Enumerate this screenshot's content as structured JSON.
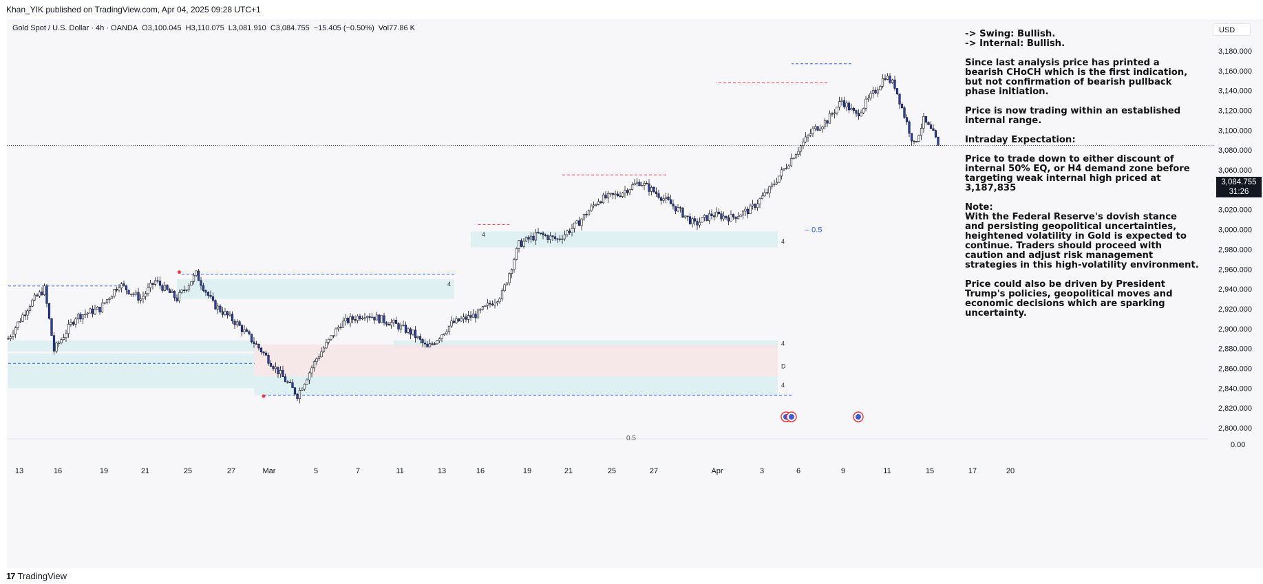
{
  "header": {
    "publisher_text": "Khan_YIK published on TradingView.com, Apr 04, 2025 09:28 UTC+1"
  },
  "legend": {
    "symbol": "Gold Spot / U.S. Dollar · 4h · OANDA",
    "open": "O3,100.045",
    "high": "H3,110.075",
    "low": "L3,081.910",
    "close": "C3,084.755",
    "change": "−15.405 (−0.50%)",
    "volume": "Vol77.86 K"
  },
  "currency": "USD",
  "price_tag": {
    "price": "3,084.755",
    "countdown": "31:26"
  },
  "annotation": {
    "swing": "-> Swing:  Bullish.",
    "internal": "-> Internal:  Bullish.",
    "para1": "Since last analysis price has printed a bearish CHoCH which is the first indication, but not confirmation of bearish pullback phase initiation.",
    "para2": "Price is now trading within an established internal range.",
    "para3": "Intraday Expectation:",
    "para4": "Price to trade down to either discount of internal 50% EQ, or H4 demand zone before targeting weak internal high priced at 3,187,835",
    "note_title": "Note:",
    "note_body": "With the Federal Reserve's dovish stance and persisting geopolitical uncertainties, heightened volatility in Gold is expected to continue. Traders should proceed with caution and adjust risk management strategies in this high-volatility environment.",
    "para5": "Price could also be driven by President Trump's policies, geopolitical moves and economic decisions which are sparking uncertainty."
  },
  "footer": {
    "brand": "TradingView",
    "mark": "17"
  },
  "colors": {
    "bull_candle": "#ffffff",
    "bear_candle": "#2a3fa8",
    "wick": "#131722",
    "demand_zone": "#d6eef0",
    "supply_zone": "#f6e1e4",
    "blue_line": "#2962ff",
    "red_line": "#f23645"
  },
  "chart_data": {
    "type": "candlestick",
    "title": "Gold Spot / U.S. Dollar · 4h · OANDA",
    "y_axis_ticks": [
      "3,180.000",
      "3,160.000",
      "3,140.000",
      "3,120.000",
      "3,100.000",
      "3,080.000",
      "3,060.000",
      "3,040.000",
      "3,020.000",
      "3,000.000",
      "2,980.000",
      "2,960.000",
      "2,940.000",
      "2,920.000",
      "2,900.000",
      "2,880.000",
      "2,860.000",
      "2,840.000",
      "2,820.000",
      "2,800.000"
    ],
    "ylim": [
      2800,
      3190
    ],
    "volume_axis_tick": "0.00",
    "x_axis_ticks": [
      "13",
      "16",
      "19",
      "21",
      "25",
      "27",
      "Mar",
      "5",
      "7",
      "11",
      "13",
      "16",
      "19",
      "21",
      "25",
      "27",
      "Apr",
      "3",
      "6",
      "9",
      "11",
      "15",
      "17",
      "20"
    ],
    "current_price": 3084.755,
    "key_path": [
      [
        0,
        2890
      ],
      [
        9,
        2925
      ],
      [
        15,
        2940
      ],
      [
        19,
        2878
      ],
      [
        28,
        2912
      ],
      [
        38,
        2920
      ],
      [
        46,
        2945
      ],
      [
        55,
        2930
      ],
      [
        61,
        2948
      ],
      [
        70,
        2930
      ],
      [
        78,
        2955
      ],
      [
        85,
        2925
      ],
      [
        95,
        2905
      ],
      [
        105,
        2878
      ],
      [
        115,
        2848
      ],
      [
        120,
        2833
      ],
      [
        128,
        2870
      ],
      [
        138,
        2905
      ],
      [
        148,
        2915
      ],
      [
        160,
        2905
      ],
      [
        168,
        2895
      ],
      [
        174,
        2880
      ],
      [
        184,
        2905
      ],
      [
        195,
        2915
      ],
      [
        205,
        2935
      ],
      [
        212,
        2985
      ],
      [
        220,
        2995
      ],
      [
        228,
        2990
      ],
      [
        236,
        3005
      ],
      [
        245,
        3030
      ],
      [
        253,
        3035
      ],
      [
        262,
        3048
      ],
      [
        270,
        3035
      ],
      [
        278,
        3020
      ],
      [
        285,
        3005
      ],
      [
        292,
        3015
      ],
      [
        300,
        3012
      ],
      [
        308,
        3020
      ],
      [
        316,
        3040
      ],
      [
        326,
        3075
      ],
      [
        334,
        3100
      ],
      [
        340,
        3110
      ],
      [
        346,
        3130
      ],
      [
        352,
        3115
      ],
      [
        360,
        3140
      ],
      [
        364,
        3155
      ],
      [
        368,
        3145
      ],
      [
        372,
        3115
      ],
      [
        376,
        3085
      ],
      [
        380,
        3110
      ],
      [
        384,
        3096
      ],
      [
        386,
        3085
      ]
    ],
    "candle_count": 387,
    "zones": [
      {
        "type": "demand",
        "timeframe": "4",
        "low": 2982,
        "high": 2998
      },
      {
        "type": "demand",
        "timeframe": "4",
        "low": 2880,
        "high": 2888
      },
      {
        "type": "supply",
        "timeframe": "D",
        "low": 2852,
        "high": 2884
      },
      {
        "type": "demand",
        "timeframe": "4",
        "low": 2833,
        "high": 2852
      },
      {
        "type": "demand",
        "low": 2930,
        "high": 2950
      },
      {
        "type": "demand",
        "low": 2877,
        "high": 2888
      },
      {
        "type": "demand",
        "low": 2840,
        "high": 2875
      }
    ],
    "levels": [
      {
        "price": 3167,
        "style": "blue-dashed",
        "label": ""
      },
      {
        "price": 3148,
        "style": "red-dashed",
        "label": ""
      },
      {
        "price": 3055,
        "style": "red-dashed",
        "label": ""
      },
      {
        "price": 3005,
        "style": "red-dashed",
        "label": ""
      },
      {
        "price": 2955,
        "style": "blue-dashed",
        "label": ""
      },
      {
        "price": 2943,
        "style": "blue-dashed",
        "label": ""
      },
      {
        "price": 2865,
        "style": "blue-dashed",
        "label": ""
      },
      {
        "price": 2833,
        "style": "blue-dashed",
        "label": ""
      }
    ],
    "eq_label": "0.5",
    "eq_price": 3000,
    "zone_labels": [
      "4",
      "4",
      "D",
      "4",
      "4",
      "4"
    ]
  }
}
